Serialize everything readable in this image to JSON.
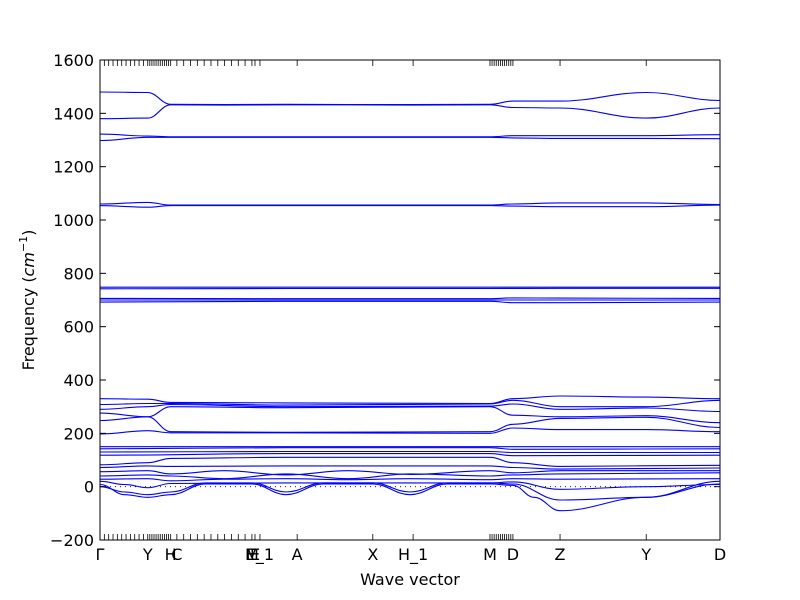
{
  "chart_data": {
    "type": "line",
    "title": "",
    "xlabel": "Wave vector",
    "ylabel_text": "Frequency (",
    "ylabel_unit": "cm",
    "ylabel_exp": "−1",
    "ylabel_close": ")",
    "ylim": [
      -200,
      1600
    ],
    "yticks": [
      -200,
      0,
      200,
      400,
      600,
      800,
      1000,
      1200,
      1400,
      1600
    ],
    "ytick_labels": [
      "−200",
      "0",
      "200",
      "400",
      "600",
      "800",
      "1000",
      "1200",
      "1400",
      "1600"
    ],
    "xlim": [
      0,
      1
    ],
    "grid": false,
    "zero_line": true,
    "line_color": "#0000ff",
    "high_symmetry_points": [
      {
        "label": "Γ",
        "x": 0.0
      },
      {
        "label": "Y",
        "x": 0.077
      },
      {
        "label": "H",
        "x": 0.114
      },
      {
        "label": "C",
        "x": 0.124
      },
      {
        "label": "M",
        "x": 0.245
      },
      {
        "label": "E",
        "x": 0.25
      },
      {
        "label": "E_1",
        "x": 0.258
      },
      {
        "label": "A",
        "x": 0.318
      },
      {
        "label": "X",
        "x": 0.44
      },
      {
        "label": "H_1",
        "x": 0.505
      },
      {
        "label": "M",
        "x": 0.629
      },
      {
        "label": "D",
        "x": 0.666
      },
      {
        "label": "Z",
        "x": 0.742
      },
      {
        "label": "Y",
        "x": 0.881
      },
      {
        "label": "D",
        "x": 1.0
      }
    ],
    "dense_tick_ranges": [
      [
        0.0,
        0.077
      ],
      [
        0.077,
        0.114
      ],
      [
        0.124,
        0.245
      ],
      [
        0.629,
        0.666
      ]
    ],
    "series": [
      {
        "x": [
          0,
          0.077,
          0.114,
          0.2,
          0.3,
          0.4,
          0.5,
          0.629,
          0.666,
          0.742,
          0.881,
          1.0
        ],
        "y": [
          1480,
          1478,
          1434,
          1433,
          1434,
          1433,
          1433,
          1434,
          1446,
          1446,
          1478,
          1448
        ]
      },
      {
        "x": [
          0,
          0.077,
          0.114,
          0.2,
          0.3,
          0.4,
          0.5,
          0.629,
          0.666,
          0.742,
          0.881,
          1.0
        ],
        "y": [
          1380,
          1382,
          1432,
          1431,
          1432,
          1432,
          1431,
          1432,
          1422,
          1420,
          1382,
          1420
        ]
      },
      {
        "x": [
          0,
          0.077,
          0.114,
          0.3,
          0.629,
          0.666,
          0.742,
          0.881,
          1.0
        ],
        "y": [
          1322,
          1315,
          1312,
          1312,
          1312,
          1316,
          1316,
          1316,
          1320
        ]
      },
      {
        "x": [
          0,
          0.077,
          0.114,
          0.3,
          0.629,
          0.666,
          0.742,
          0.881,
          1.0
        ],
        "y": [
          1298,
          1310,
          1310,
          1310,
          1310,
          1308,
          1306,
          1306,
          1305
        ]
      },
      {
        "x": [
          0,
          0.077,
          0.114,
          0.3,
          0.629,
          0.666,
          0.742,
          0.881,
          1.0
        ],
        "y": [
          1060,
          1066,
          1056,
          1056,
          1056,
          1060,
          1064,
          1064,
          1058
        ]
      },
      {
        "x": [
          0,
          0.077,
          0.114,
          0.3,
          0.629,
          0.666,
          0.742,
          0.881,
          1.0
        ],
        "y": [
          1054,
          1048,
          1054,
          1054,
          1054,
          1052,
          1050,
          1050,
          1056
        ]
      },
      {
        "x": [
          0,
          0.3,
          0.629,
          0.742,
          1.0
        ],
        "y": [
          748,
          748,
          748,
          748,
          748
        ]
      },
      {
        "x": [
          0,
          0.3,
          0.629,
          0.742,
          1.0
        ],
        "y": [
          742,
          743,
          743,
          744,
          744
        ]
      },
      {
        "x": [
          0,
          0.3,
          0.629,
          0.666,
          0.742,
          1.0
        ],
        "y": [
          706,
          705,
          705,
          708,
          707,
          706
        ]
      },
      {
        "x": [
          0,
          0.3,
          0.629,
          0.666,
          0.742,
          1.0
        ],
        "y": [
          700,
          700,
          700,
          700,
          700,
          700
        ]
      },
      {
        "x": [
          0,
          0.3,
          0.629,
          0.666,
          0.742,
          1.0
        ],
        "y": [
          692,
          695,
          695,
          690,
          690,
          692
        ]
      },
      {
        "x": [
          0,
          0.077,
          0.114,
          0.3,
          0.629,
          0.666,
          0.742,
          0.881,
          1.0
        ],
        "y": [
          330,
          328,
          316,
          314,
          312,
          330,
          340,
          336,
          330
        ]
      },
      {
        "x": [
          0,
          0.077,
          0.114,
          0.3,
          0.629,
          0.666,
          0.742,
          0.881,
          1.0
        ],
        "y": [
          308,
          312,
          312,
          306,
          310,
          324,
          300,
          300,
          324
        ]
      },
      {
        "x": [
          0,
          0.077,
          0.114,
          0.3,
          0.629,
          0.666,
          0.742,
          0.881,
          1.0
        ],
        "y": [
          290,
          300,
          308,
          300,
          302,
          310,
          290,
          295,
          282
        ]
      },
      {
        "x": [
          0,
          0.077,
          0.114,
          0.3,
          0.629,
          0.666,
          0.742,
          0.881,
          1.0
        ],
        "y": [
          276,
          262,
          300,
          296,
          300,
          268,
          262,
          266,
          240
        ]
      },
      {
        "x": [
          0,
          0.077,
          0.114,
          0.3,
          0.629,
          0.666,
          0.742,
          0.881,
          1.0
        ],
        "y": [
          248,
          262,
          206,
          204,
          206,
          234,
          256,
          260,
          222
        ]
      },
      {
        "x": [
          0,
          0.077,
          0.114,
          0.3,
          0.629,
          0.666,
          0.742,
          0.881,
          1.0
        ],
        "y": [
          198,
          210,
          202,
          202,
          200,
          220,
          214,
          214,
          206
        ]
      },
      {
        "x": [
          0,
          0.3,
          0.629,
          0.666,
          1.0
        ],
        "y": [
          150,
          150,
          150,
          150,
          150
        ]
      },
      {
        "x": [
          0,
          0.3,
          0.629,
          0.666,
          1.0
        ],
        "y": [
          142,
          146,
          146,
          140,
          142
        ]
      },
      {
        "x": [
          0,
          0.3,
          0.629,
          0.666,
          1.0
        ],
        "y": [
          130,
          132,
          132,
          128,
          128
        ]
      },
      {
        "x": [
          0,
          0.3,
          0.629,
          0.666,
          1.0
        ],
        "y": [
          118,
          124,
          124,
          116,
          118
        ]
      },
      {
        "x": [
          0,
          0.077,
          0.114,
          0.3,
          0.629,
          0.666,
          0.742,
          1.0
        ],
        "y": [
          82,
          90,
          106,
          110,
          110,
          90,
          76,
          80
        ]
      },
      {
        "x": [
          0,
          0.077,
          0.114,
          0.3,
          0.629,
          0.666,
          0.742,
          1.0
        ],
        "y": [
          72,
          78,
          76,
          78,
          78,
          72,
          66,
          70
        ]
      },
      {
        "x": [
          0,
          0.077,
          0.114,
          0.2,
          0.3,
          0.4,
          0.5,
          0.629,
          0.666,
          0.742,
          1.0
        ],
        "y": [
          56,
          60,
          48,
          60,
          44,
          60,
          46,
          60,
          52,
          60,
          60
        ]
      },
      {
        "x": [
          0,
          0.077,
          0.114,
          0.2,
          0.3,
          0.4,
          0.5,
          0.629,
          0.666,
          0.742,
          1.0
        ],
        "y": [
          40,
          44,
          40,
          30,
          48,
          30,
          48,
          40,
          44,
          48,
          52
        ]
      },
      {
        "x": [
          0,
          0.077,
          0.114,
          0.2,
          0.3,
          0.4,
          0.5,
          0.629,
          0.666,
          0.742,
          1.0
        ],
        "y": [
          28,
          30,
          22,
          28,
          30,
          26,
          30,
          26,
          30,
          28,
          30
        ]
      },
      {
        "x": [
          0,
          0.04,
          0.077,
          0.114,
          0.17,
          0.245,
          0.3,
          0.36,
          0.44,
          0.5,
          0.56,
          0.629,
          0.666,
          0.7,
          0.742,
          0.881,
          1.0
        ],
        "y": [
          8,
          -30,
          -40,
          -30,
          10,
          10,
          -30,
          10,
          10,
          -30,
          10,
          10,
          5,
          -40,
          -90,
          -40,
          10
        ]
      },
      {
        "x": [
          0,
          0.04,
          0.077,
          0.114,
          0.17,
          0.245,
          0.3,
          0.36,
          0.44,
          0.5,
          0.56,
          0.629,
          0.666,
          0.742,
          0.881,
          1.0
        ],
        "y": [
          0,
          -20,
          -30,
          -20,
          14,
          14,
          -20,
          14,
          14,
          -20,
          14,
          14,
          10,
          -50,
          -40,
          20
        ]
      },
      {
        "x": [
          0,
          0.04,
          0.077,
          0.114,
          0.3,
          0.44,
          0.629,
          0.666,
          0.742,
          0.881,
          1.0
        ],
        "y": [
          20,
          8,
          -4,
          12,
          14,
          14,
          14,
          18,
          -10,
          0,
          8
        ]
      }
    ]
  }
}
